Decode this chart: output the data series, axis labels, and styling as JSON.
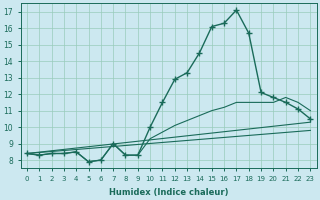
{
  "xlabel": "Humidex (Indice chaleur)",
  "bg_color": "#cce8f0",
  "grid_color": "#99ccbb",
  "line_color": "#1a6b5a",
  "xlim": [
    -0.5,
    23.5
  ],
  "ylim": [
    7.5,
    17.5
  ],
  "xticks": [
    0,
    1,
    2,
    3,
    4,
    5,
    6,
    7,
    8,
    9,
    10,
    11,
    12,
    13,
    14,
    15,
    16,
    17,
    18,
    19,
    20,
    21,
    22,
    23
  ],
  "yticks": [
    8,
    9,
    10,
    11,
    12,
    13,
    14,
    15,
    16,
    17
  ],
  "line1_x": [
    0,
    1,
    2,
    3,
    4,
    5,
    6,
    7,
    8,
    9,
    10,
    11,
    12,
    13,
    14,
    15,
    16,
    17,
    18,
    19,
    20,
    21,
    22,
    23
  ],
  "line1_y": [
    8.4,
    8.3,
    8.4,
    8.4,
    8.5,
    7.9,
    8.0,
    9.0,
    8.3,
    8.3,
    10.0,
    11.5,
    12.9,
    13.3,
    14.5,
    16.1,
    16.3,
    17.1,
    15.7,
    12.1,
    11.8,
    11.5,
    11.1,
    10.5
  ],
  "line2_x": [
    0,
    1,
    2,
    3,
    4,
    5,
    6,
    7,
    8,
    9,
    10,
    11,
    12,
    13,
    14,
    15,
    16,
    17,
    18,
    19,
    20,
    21,
    22,
    23
  ],
  "line2_y": [
    8.4,
    8.3,
    8.4,
    8.4,
    8.5,
    7.9,
    8.0,
    9.0,
    8.3,
    8.3,
    9.3,
    9.7,
    10.1,
    10.4,
    10.7,
    11.0,
    11.2,
    11.5,
    11.5,
    11.5,
    11.5,
    11.8,
    11.5,
    11.0
  ],
  "line3_x": [
    0,
    23
  ],
  "line3_y": [
    8.4,
    10.3
  ],
  "line4_x": [
    0,
    23
  ],
  "line4_y": [
    8.4,
    9.8
  ]
}
